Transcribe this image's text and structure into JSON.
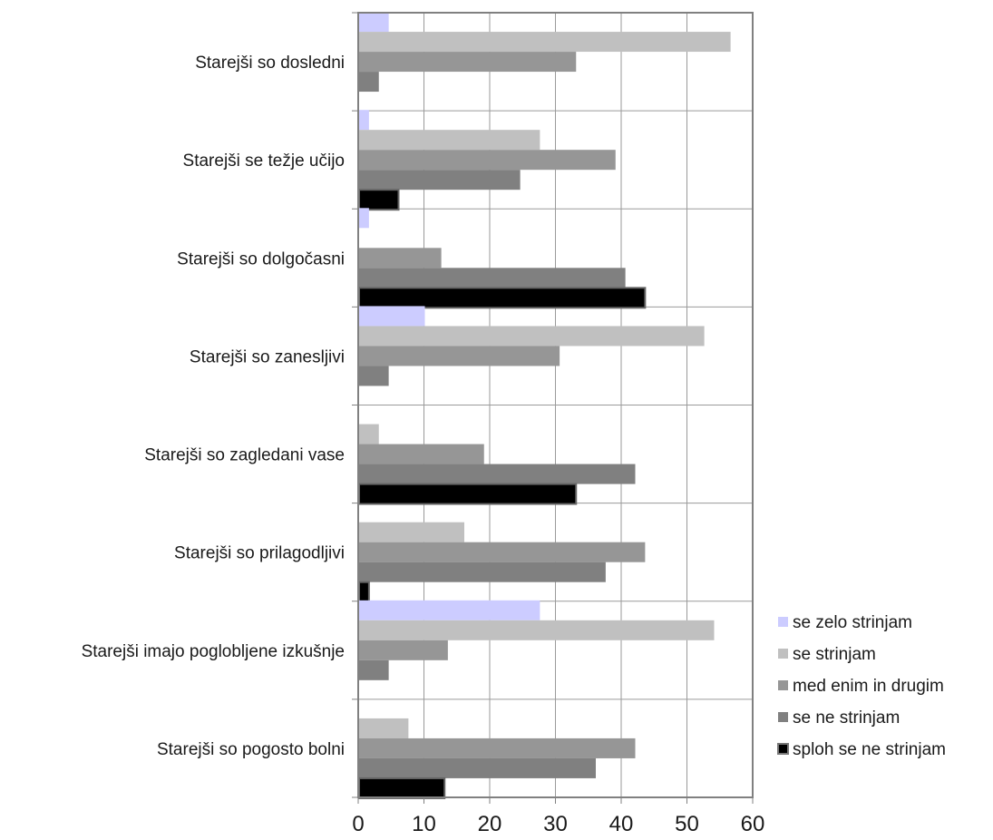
{
  "chart_data": {
    "type": "bar",
    "orientation": "horizontal",
    "title": "",
    "xlabel": "",
    "ylabel": "",
    "xlim": [
      0,
      60
    ],
    "x_ticks": [
      "0",
      "10",
      "20",
      "30",
      "40",
      "50",
      "60"
    ],
    "grid": true,
    "legend_position": "right",
    "categories": [
      "Starejši so dosledni",
      "Starejši se težje učijo",
      "Starejši so dolgočasni",
      "Starejši so zanesljivi",
      "Starejši so zagledani vase",
      "Starejši so prilagodljivi",
      "Starejši imajo poglobljene izkušnje",
      "Starejši so pogosto bolni"
    ],
    "series": [
      {
        "name": "se zelo strinjam",
        "color": "#ccccff",
        "values": [
          4.5,
          1.5,
          1.5,
          10,
          0,
          0,
          27.5,
          0
        ]
      },
      {
        "name": "se strinjam",
        "color": "#c0c0c0",
        "values": [
          56.5,
          27.5,
          0,
          52.5,
          3,
          16,
          54,
          7.5
        ]
      },
      {
        "name": "med enim in drugim",
        "color": "#969696",
        "values": [
          33,
          39,
          12.5,
          30.5,
          19,
          43.5,
          13.5,
          42
        ]
      },
      {
        "name": "se ne strinjam",
        "color": "#808080",
        "values": [
          3,
          24.5,
          40.5,
          4.5,
          42,
          37.5,
          4.5,
          36
        ]
      },
      {
        "name": "sploh se ne strinjam",
        "color": "#000000",
        "values": [
          0,
          6,
          43.5,
          0,
          33,
          1.5,
          0,
          13
        ]
      }
    ]
  }
}
